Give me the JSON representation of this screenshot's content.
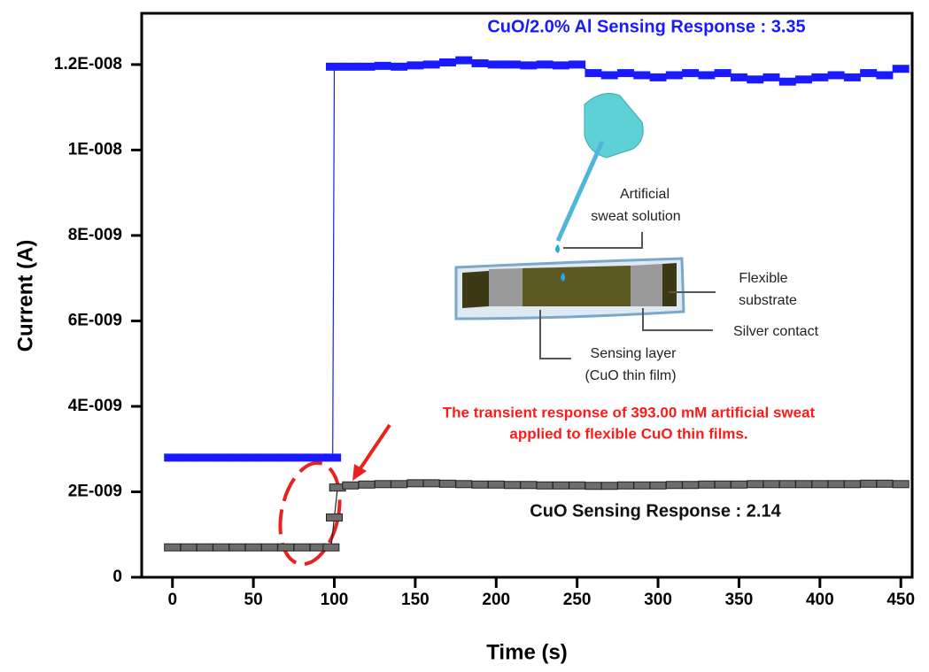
{
  "chart_data": {
    "type": "line",
    "xlabel": "Time (s)",
    "ylabel": "Current (A)",
    "xlim": [
      -19,
      457
    ],
    "ylim": [
      0,
      1.32e-08
    ],
    "xticks": [
      0,
      50,
      100,
      150,
      200,
      250,
      300,
      350,
      400,
      450
    ],
    "yticks": [
      0,
      {
        "value": 2e-09,
        "label": "2E-009"
      },
      {
        "value": 4e-09,
        "label": "4E-009"
      },
      {
        "value": 6e-09,
        "label": "6E-009"
      },
      {
        "value": 8e-09,
        "label": "8E-009"
      },
      {
        "value": 1e-08,
        "label": "1E-008"
      },
      {
        "value": 1.2e-08,
        "label": "1.2E-008"
      }
    ],
    "series": [
      {
        "color": "#1a1aff",
        "x": [
          0,
          10,
          20,
          30,
          40,
          50,
          60,
          70,
          80,
          90,
          99,
          100,
          110,
          120,
          130,
          140,
          150,
          160,
          170,
          180,
          190,
          200,
          210,
          220,
          230,
          240,
          250,
          260,
          270,
          280,
          290,
          300,
          310,
          320,
          330,
          340,
          350,
          360,
          370,
          380,
          390,
          400,
          410,
          420,
          430,
          440,
          450
        ],
        "values": [
          2.8e-09,
          2.8e-09,
          2.8e-09,
          2.8e-09,
          2.8e-09,
          2.8e-09,
          2.8e-09,
          2.8e-09,
          2.8e-09,
          2.8e-09,
          2.8e-09,
          1.195e-08,
          1.195e-08,
          1.195e-08,
          1.197e-08,
          1.195e-08,
          1.198e-08,
          1.2e-08,
          1.205e-08,
          1.21e-08,
          1.203e-08,
          1.2e-08,
          1.2e-08,
          1.198e-08,
          1.2e-08,
          1.198e-08,
          1.2e-08,
          1.18e-08,
          1.175e-08,
          1.18e-08,
          1.175e-08,
          1.17e-08,
          1.175e-08,
          1.18e-08,
          1.175e-08,
          1.18e-08,
          1.17e-08,
          1.165e-08,
          1.17e-08,
          1.16e-08,
          1.165e-08,
          1.17e-08,
          1.175e-08,
          1.17e-08,
          1.18e-08,
          1.175e-08,
          1.19e-08
        ]
      },
      {
        "color": "#222222",
        "x": [
          0,
          10,
          20,
          30,
          40,
          50,
          60,
          70,
          80,
          90,
          98,
          100,
          102,
          110,
          120,
          130,
          140,
          150,
          160,
          170,
          180,
          190,
          200,
          210,
          220,
          230,
          240,
          250,
          260,
          270,
          280,
          290,
          300,
          310,
          320,
          330,
          340,
          350,
          360,
          370,
          380,
          390,
          400,
          410,
          420,
          430,
          440,
          450
        ],
        "values": [
          7e-10,
          7e-10,
          7e-10,
          7e-10,
          7e-10,
          7e-10,
          7e-10,
          7e-10,
          7e-10,
          7e-10,
          7e-10,
          1.4e-09,
          2.1e-09,
          2.15e-09,
          2.17e-09,
          2.18e-09,
          2.18e-09,
          2.2e-09,
          2.2e-09,
          2.19e-09,
          2.18e-09,
          2.17e-09,
          2.17e-09,
          2.16e-09,
          2.16e-09,
          2.15e-09,
          2.15e-09,
          2.15e-09,
          2.14e-09,
          2.14e-09,
          2.15e-09,
          2.15e-09,
          2.15e-09,
          2.16e-09,
          2.16e-09,
          2.17e-09,
          2.17e-09,
          2.17e-09,
          2.18e-09,
          2.18e-09,
          2.18e-09,
          2.18e-09,
          2.18e-09,
          2.18e-09,
          2.18e-09,
          2.19e-09,
          2.19e-09,
          2.18e-09
        ]
      }
    ],
    "annotations": [
      "CuO/2.0% Al  Sensing Response : 3.35",
      "CuO  Sensing Response : 2.14",
      "The transient response of 393.00 mM artificial sweat",
      "applied to  flexible CuO thin films.",
      "Artificial",
      "sweat solution",
      "Flexible",
      "substrate",
      "Silver contact",
      "Sensing layer",
      "(CuO thin film)"
    ]
  }
}
